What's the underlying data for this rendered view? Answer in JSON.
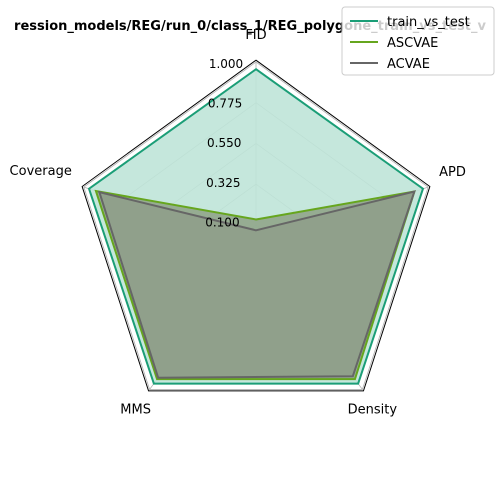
{
  "chart_data": {
    "type": "radar",
    "title": "ression_models/REG/run_0/class_1/REG_polygone_train_vs_test_v",
    "axes": [
      "FID",
      "APD",
      "Density",
      "MMS",
      "Coverage"
    ],
    "radial_ticks": [
      "1.000",
      "0.775",
      "0.550",
      "0.325",
      "0.100"
    ],
    "radial_tick_values": [
      1.0,
      0.775,
      0.55,
      0.325,
      0.1
    ],
    "range": [
      0,
      1.0
    ],
    "legend_position": "top-right",
    "series": [
      {
        "name": "train_vs_test",
        "values": [
          0.96,
          0.97,
          0.96,
          0.96,
          0.97
        ],
        "color": "#1b9e77",
        "fill": "#bfe4d8"
      },
      {
        "name": "ASCVAE",
        "values": [
          0.13,
          0.92,
          0.93,
          0.93,
          0.93
        ],
        "color": "#66a61e",
        "fill": "#8a9e80"
      },
      {
        "name": "ACVAE",
        "values": [
          0.07,
          0.92,
          0.91,
          0.92,
          0.91
        ],
        "color": "#666666",
        "fill": "#8f9d8a"
      }
    ]
  }
}
